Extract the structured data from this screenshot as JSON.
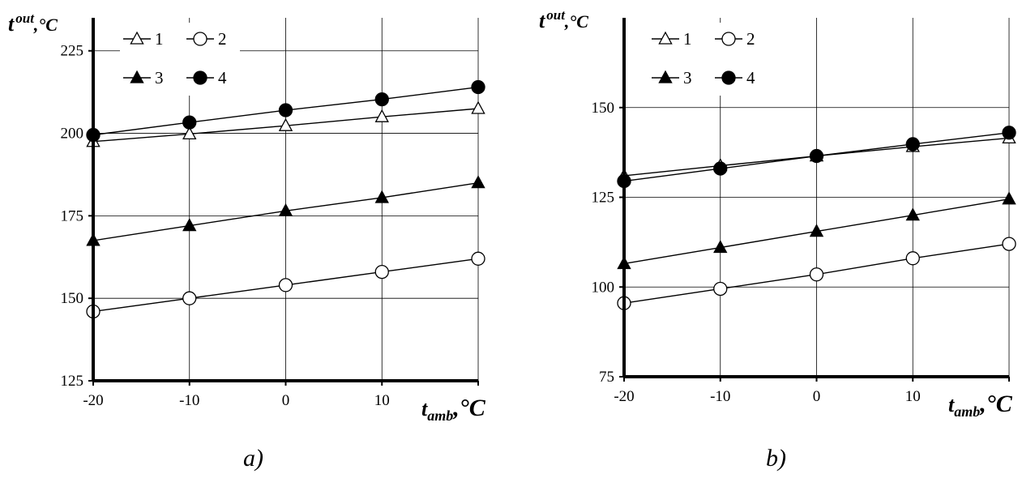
{
  "chart_data": [
    {
      "type": "line",
      "panel_label": "a)",
      "ylabel": "t",
      "ylabel_sup": "out",
      "ylabel_unit": ",°C",
      "xlabel": "t",
      "xlabel_sub": "amb",
      "xlabel_unit": ",°C",
      "x": [
        -20,
        -10,
        0,
        10,
        20
      ],
      "x_tick_labels": [
        "-20",
        "-10",
        "0",
        "10"
      ],
      "xlim": [
        -20,
        20
      ],
      "ylim": [
        125,
        235
      ],
      "y_ticks": [
        125,
        150,
        175,
        200,
        225
      ],
      "y_tick_labels": [
        "125",
        "150",
        "175",
        "200",
        "225"
      ],
      "grid": true,
      "legend_position": "top-left",
      "series": [
        {
          "name": "1",
          "marker": "open-triangle",
          "values": [
            197.5,
            199.8,
            202.3,
            205,
            207.5
          ]
        },
        {
          "name": "2",
          "marker": "open-circle",
          "values": [
            146,
            150,
            154,
            158,
            162
          ]
        },
        {
          "name": "3",
          "marker": "filled-triangle",
          "values": [
            167.5,
            172,
            176.5,
            180.5,
            185
          ]
        },
        {
          "name": "4",
          "marker": "filled-circle",
          "values": [
            199.5,
            203.3,
            207,
            210.3,
            214
          ]
        }
      ]
    },
    {
      "type": "line",
      "panel_label": "b)",
      "ylabel": "t",
      "ylabel_sup": "out",
      "ylabel_unit": ",°C",
      "xlabel": "t",
      "xlabel_sub": "amb",
      "xlabel_unit": ",°C",
      "x": [
        -20,
        -10,
        0,
        10,
        20
      ],
      "x_tick_labels": [
        "-20",
        "-10",
        "0",
        "10"
      ],
      "xlim": [
        -20,
        20
      ],
      "ylim": [
        75,
        175
      ],
      "y_ticks": [
        75,
        100,
        125,
        150
      ],
      "y_tick_labels": [
        "75",
        "100",
        "125",
        "150"
      ],
      "grid": true,
      "legend_position": "top-left",
      "series": [
        {
          "name": "1",
          "marker": "open-triangle",
          "values": [
            131,
            133.8,
            136.5,
            139.1,
            141.5
          ]
        },
        {
          "name": "2",
          "marker": "open-circle",
          "values": [
            95.5,
            99.5,
            103.5,
            108,
            112
          ]
        },
        {
          "name": "3",
          "marker": "filled-triangle",
          "values": [
            106.5,
            111,
            115.5,
            120,
            124.5
          ]
        },
        {
          "name": "4",
          "marker": "filled-circle",
          "values": [
            129.5,
            133,
            136.5,
            139.8,
            143
          ]
        }
      ]
    }
  ]
}
